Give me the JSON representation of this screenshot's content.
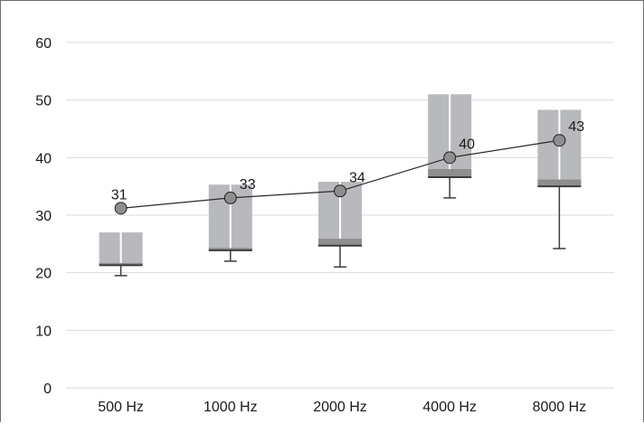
{
  "chart_data": {
    "type": "box",
    "categories": [
      "500 Hz",
      "1000 Hz",
      "2000 Hz",
      "4000 Hz",
      "8000 Hz"
    ],
    "ylim": [
      0,
      60
    ],
    "yticks": [
      0,
      10,
      20,
      30,
      40,
      50,
      60
    ],
    "y_tick_labels": [
      "0",
      "10",
      "20",
      "30",
      "40",
      "50",
      "60"
    ],
    "grid": true,
    "boxes": [
      {
        "whisker_low": 19.5,
        "q1": 21.3,
        "median": 21.7,
        "q3": 27.0
      },
      {
        "whisker_low": 22.0,
        "q1": 23.9,
        "median": 24.3,
        "q3": 35.3
      },
      {
        "whisker_low": 21.0,
        "q1": 24.7,
        "median": 25.9,
        "q3": 35.8
      },
      {
        "whisker_low": 33.0,
        "q1": 36.6,
        "median": 38.0,
        "q3": 51.0
      },
      {
        "whisker_low": 24.2,
        "q1": 35.0,
        "median": 36.2,
        "q3": 48.3
      }
    ],
    "series": [
      {
        "values": [
          31.2,
          33.0,
          34.2,
          40.0,
          43.0
        ],
        "labels": [
          "31",
          "33",
          "34",
          "40",
          "43"
        ]
      }
    ],
    "colors": {
      "box": "#b8b9bd",
      "box_edge": "#3c3c3c",
      "line": "#2b2b2b",
      "marker": "#8e8e8e",
      "grid": "#d9d9d9"
    }
  }
}
